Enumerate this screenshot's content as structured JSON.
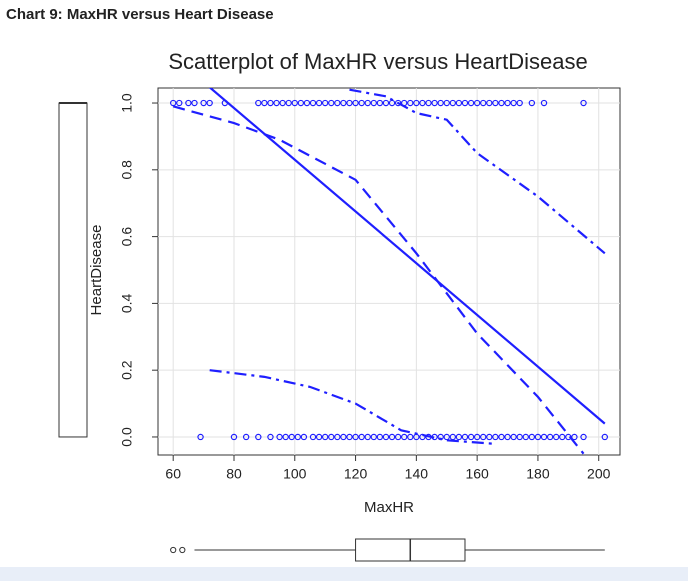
{
  "header": "Chart 9: MaxHR versus Heart Disease",
  "chart_data": {
    "type": "scatter",
    "title": "Scatterplot of MaxHR versus HeartDisease",
    "x_label": "MaxHR",
    "y_label": "HeartDisease",
    "xlim": [
      55,
      207
    ],
    "ylim": [
      -0.054,
      1.045
    ],
    "xticks": [
      60,
      80,
      100,
      120,
      140,
      160,
      180,
      200
    ],
    "yticks": [
      {
        "value": 0,
        "label": "0.0"
      },
      {
        "value": 0.2,
        "label": "0.2"
      },
      {
        "value": 0.4,
        "label": "0.4"
      },
      {
        "value": 0.6,
        "label": "0.6"
      },
      {
        "value": 0.8,
        "label": "0.8"
      },
      {
        "value": 1,
        "label": "1.0"
      }
    ],
    "grid": true,
    "color": "#1f1fff",
    "series": [
      {
        "x": [
          60,
          62,
          65,
          67,
          70,
          72,
          77,
          88,
          90,
          92,
          94,
          96,
          98,
          100,
          102,
          104,
          106,
          108,
          110,
          112,
          114,
          116,
          118,
          120,
          122,
          124,
          126,
          128,
          130,
          132,
          134,
          136,
          138,
          140,
          142,
          144,
          146,
          148,
          150,
          152,
          154,
          156,
          158,
          160,
          162,
          164,
          166,
          168,
          170,
          172,
          174,
          178,
          182,
          195
        ],
        "values": [
          1,
          1,
          1,
          1,
          1,
          1,
          1,
          1,
          1,
          1,
          1,
          1,
          1,
          1,
          1,
          1,
          1,
          1,
          1,
          1,
          1,
          1,
          1,
          1,
          1,
          1,
          1,
          1,
          1,
          1,
          1,
          1,
          1,
          1,
          1,
          1,
          1,
          1,
          1,
          1,
          1,
          1,
          1,
          1,
          1,
          1,
          1,
          1,
          1,
          1,
          1,
          1,
          1,
          1
        ]
      },
      {
        "x": [
          69,
          80,
          84,
          88,
          92,
          95,
          97,
          99,
          101,
          103,
          106,
          108,
          110,
          112,
          114,
          116,
          118,
          120,
          122,
          124,
          126,
          128,
          130,
          132,
          134,
          136,
          138,
          140,
          142,
          144,
          146,
          148,
          150,
          152,
          154,
          156,
          158,
          160,
          162,
          164,
          166,
          168,
          170,
          172,
          174,
          176,
          178,
          180,
          182,
          184,
          186,
          188,
          190,
          192,
          195,
          202
        ],
        "values": [
          0,
          0,
          0,
          0,
          0,
          0,
          0,
          0,
          0,
          0,
          0,
          0,
          0,
          0,
          0,
          0,
          0,
          0,
          0,
          0,
          0,
          0,
          0,
          0,
          0,
          0,
          0,
          0,
          0,
          0,
          0,
          0,
          0,
          0,
          0,
          0,
          0,
          0,
          0,
          0,
          0,
          0,
          0,
          0,
          0,
          0,
          0,
          0,
          0,
          0,
          0,
          0,
          0,
          0,
          0,
          0
        ]
      }
    ],
    "lines": [
      {
        "style": "solid",
        "x": [
          60,
          202
        ],
        "values": [
          1.14,
          0.04
        ]
      },
      {
        "style": "dashed",
        "x": [
          60,
          80,
          95,
          120,
          140,
          160,
          180,
          195
        ],
        "values": [
          0.99,
          0.94,
          0.89,
          0.77,
          0.55,
          0.31,
          0.12,
          -0.05
        ]
      },
      {
        "style": "dashdot",
        "x": [
          118,
          130,
          140,
          150,
          160,
          180,
          202
        ],
        "values": [
          1.04,
          1.02,
          0.97,
          0.95,
          0.85,
          0.72,
          0.55
        ]
      },
      {
        "style": "dashdot",
        "x": [
          72,
          90,
          105,
          120,
          135,
          150,
          165
        ],
        "values": [
          0.2,
          0.18,
          0.15,
          0.1,
          0.02,
          -0.01,
          -0.02
        ]
      }
    ],
    "x_box": {
      "whisker_low": 67,
      "q1": 120,
      "median": 138,
      "q3": 156,
      "whisker_high": 202,
      "outliers": [
        60,
        63
      ]
    },
    "y_box": {
      "whisker_low": 0,
      "q1": 0,
      "median": 1,
      "q3": 1,
      "whisker_high": 1
    }
  }
}
